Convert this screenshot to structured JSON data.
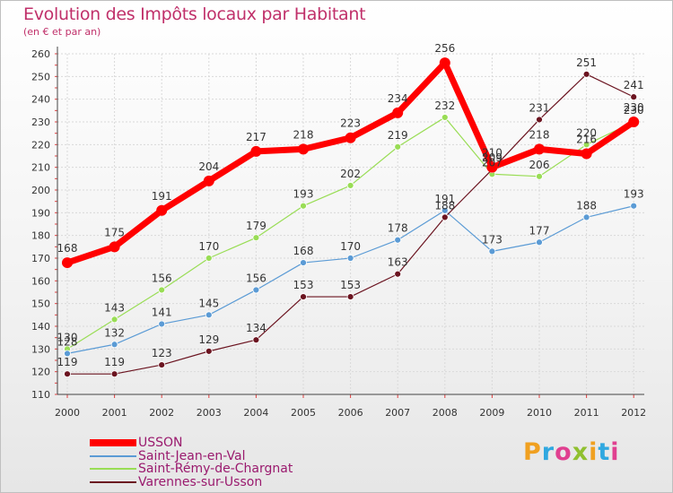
{
  "chart_data": {
    "type": "line",
    "title": "Evolution des Impôts locaux par Habitant",
    "subtitle": "(en € et par an)",
    "xlabel": "",
    "ylabel": "",
    "x": [
      "2000",
      "2001",
      "2002",
      "2003",
      "2004",
      "2005",
      "2006",
      "2007",
      "2008",
      "2009",
      "2010",
      "2011",
      "2012"
    ],
    "ylim": [
      110,
      260
    ],
    "yticks": [
      110,
      120,
      130,
      140,
      150,
      160,
      170,
      180,
      190,
      200,
      210,
      220,
      230,
      240,
      250,
      260
    ],
    "grid": true,
    "series": [
      {
        "name": "USSON",
        "color": "#ff0000",
        "values": [
          168,
          175,
          191,
          204,
          217,
          218,
          223,
          234,
          256,
          210,
          218,
          216,
          230
        ]
      },
      {
        "name": "Saint-Jean-en-Val",
        "color": "#5b9bd5",
        "values": [
          128,
          132,
          141,
          145,
          156,
          168,
          170,
          178,
          191,
          173,
          177,
          188,
          193
        ]
      },
      {
        "name": "Saint-Rémy-de-Chargnat",
        "color": "#99dd55",
        "values": [
          130,
          143,
          156,
          170,
          179,
          193,
          202,
          219,
          232,
          207,
          206,
          220,
          230
        ]
      },
      {
        "name": "Varennes-sur-Usson",
        "color": "#6b1420",
        "values": [
          119,
          119,
          123,
          129,
          134,
          153,
          153,
          163,
          188,
          209,
          231,
          251,
          241
        ]
      }
    ],
    "legend": "bottom-left"
  },
  "logo": {
    "letters": [
      {
        "ch": "P",
        "color": "#f0a020"
      },
      {
        "ch": "r",
        "color": "#30a8e0"
      },
      {
        "ch": "o",
        "color": "#e04090"
      },
      {
        "ch": "x",
        "color": "#90c030"
      },
      {
        "ch": "i",
        "color": "#f0a020"
      },
      {
        "ch": "t",
        "color": "#30a8e0"
      },
      {
        "ch": "i",
        "color": "#e04090"
      }
    ]
  }
}
